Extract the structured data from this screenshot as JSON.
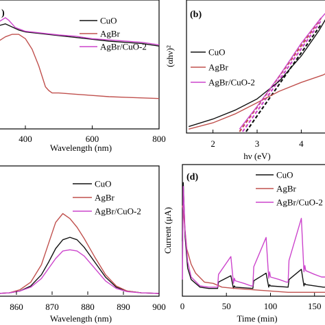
{
  "chart_data": [
    {
      "type": "line",
      "panel_label": ")",
      "xlabel": "Wavelength (nm)",
      "ylabel": "",
      "xlim": [
        320,
        800
      ],
      "ylim": [
        0,
        1
      ],
      "x_ticks": [
        "400",
        "600",
        "800"
      ],
      "y_ticks": [],
      "legend": "top-right",
      "series": [
        {
          "name": "CuO",
          "color": "#111111",
          "x": [
            320,
            340,
            360,
            380,
            400,
            450,
            500,
            550,
            600,
            650,
            700,
            750,
            800
          ],
          "y": [
            0.825,
            0.84,
            0.815,
            0.79,
            0.775,
            0.76,
            0.745,
            0.73,
            0.715,
            0.7,
            0.69,
            0.68,
            0.66
          ]
        },
        {
          "name": "AgBr",
          "color": "#c0504d",
          "x": [
            320,
            340,
            360,
            380,
            400,
            420,
            440,
            460,
            470,
            480,
            500,
            550,
            600,
            650,
            700,
            750,
            800
          ],
          "y": [
            0.7,
            0.735,
            0.755,
            0.755,
            0.72,
            0.635,
            0.5,
            0.33,
            0.3,
            0.28,
            0.28,
            0.27,
            0.26,
            0.25,
            0.245,
            0.24,
            0.235
          ]
        },
        {
          "name": "AgBr/CuO-2",
          "color": "#cc44cc",
          "x": [
            320,
            340,
            350,
            370,
            400,
            450,
            500,
            550,
            600,
            650,
            700,
            750,
            800
          ],
          "y": [
            0.855,
            0.89,
            0.87,
            0.81,
            0.78,
            0.765,
            0.75,
            0.74,
            0.72,
            0.71,
            0.7,
            0.69,
            0.67
          ]
        }
      ]
    },
    {
      "type": "line",
      "panel_label": "(b)",
      "xlabel": "hν (eV)",
      "ylabel": "(αhν)²",
      "xlim": [
        1.4,
        4.6
      ],
      "ylim": [
        0,
        1
      ],
      "x_ticks": [
        "2",
        "3",
        "4"
      ],
      "y_ticks": [],
      "legend": "center-left",
      "series": [
        {
          "name": "CuO",
          "color": "#111111",
          "x": [
            1.45,
            2.0,
            2.5,
            3.0,
            3.5,
            4.0,
            4.4,
            4.6
          ],
          "y": [
            0.04,
            0.1,
            0.17,
            0.26,
            0.4,
            0.6,
            0.8,
            0.92
          ]
        },
        {
          "name": "AgBr",
          "color": "#c0504d",
          "x": [
            1.45,
            2.0,
            2.5,
            3.0,
            3.5,
            4.0,
            4.5,
            4.6
          ],
          "y": [
            0.02,
            0.07,
            0.14,
            0.23,
            0.32,
            0.39,
            0.45,
            0.47
          ]
        },
        {
          "name": "AgBr/CuO-2",
          "color": "#cc44cc",
          "x": [
            2.6,
            3.0,
            3.5,
            4.0,
            4.4,
            4.6
          ],
          "y": [
            0.02,
            0.2,
            0.44,
            0.7,
            0.88,
            0.96
          ]
        }
      ],
      "fit_lines": [
        {
          "color": "#111111",
          "x": [
            2.75,
            4.45
          ],
          "y": [
            0.0,
            0.85
          ]
        },
        {
          "color": "#c0504d",
          "x": [
            2.6,
            4.45
          ],
          "y": [
            0.0,
            0.9
          ]
        },
        {
          "color": "#cc44cc",
          "x": [
            2.67,
            4.45
          ],
          "y": [
            0.0,
            0.88
          ]
        }
      ]
    },
    {
      "type": "line",
      "panel_label": "",
      "xlabel": "Wavelength (nm)",
      "ylabel": "",
      "xlim": [
        855,
        900
      ],
      "ylim": [
        0,
        1
      ],
      "x_ticks": [
        "860",
        "870",
        "880",
        "890",
        "900"
      ],
      "y_ticks": [],
      "legend": "top-right",
      "series": [
        {
          "name": "CuO",
          "color": "#111111",
          "x": [
            855,
            858,
            861,
            864,
            867,
            869,
            871,
            873,
            875,
            877,
            879,
            882,
            885,
            888,
            891,
            895,
            900
          ],
          "y": [
            0.0,
            0.005,
            0.02,
            0.06,
            0.15,
            0.25,
            0.36,
            0.43,
            0.45,
            0.43,
            0.37,
            0.25,
            0.13,
            0.05,
            0.02,
            0.005,
            0.0
          ]
        },
        {
          "name": "AgBr",
          "color": "#c0504d",
          "x": [
            855,
            858,
            861,
            864,
            867,
            869,
            871,
            873,
            875,
            877,
            879,
            882,
            885,
            888,
            891,
            895,
            900
          ],
          "y": [
            0.0,
            0.005,
            0.03,
            0.09,
            0.23,
            0.4,
            0.57,
            0.64,
            0.6,
            0.53,
            0.44,
            0.29,
            0.15,
            0.06,
            0.02,
            0.005,
            0.0
          ]
        },
        {
          "name": "AgBr/CuO-2",
          "color": "#cc44cc",
          "x": [
            855,
            858,
            861,
            864,
            867,
            869,
            871,
            873,
            875,
            877,
            879,
            882,
            885,
            888,
            891,
            895,
            900
          ],
          "y": [
            0.0,
            0.005,
            0.02,
            0.05,
            0.12,
            0.2,
            0.28,
            0.34,
            0.35,
            0.34,
            0.3,
            0.2,
            0.1,
            0.04,
            0.015,
            0.005,
            0.0
          ]
        }
      ]
    },
    {
      "type": "line",
      "panel_label": "(d)",
      "xlabel": "Time (min)",
      "ylabel": "Current  (μA)",
      "xlim": [
        0,
        165
      ],
      "ylim": [
        0,
        1
      ],
      "x_ticks": [
        "0",
        "50",
        "100",
        "150"
      ],
      "y_ticks": [],
      "legend": "top-right",
      "series": [
        {
          "name": "CuO",
          "color": "#111111",
          "x": [
            0,
            1,
            3,
            6,
            10,
            20,
            30,
            39,
            40,
            41,
            55,
            58,
            59,
            60,
            80,
            81,
            95,
            98,
            99,
            100,
            120,
            121,
            135,
            138,
            139,
            140,
            160,
            165
          ],
          "y": [
            0.42,
            0.88,
            0.46,
            0.21,
            0.12,
            0.06,
            0.05,
            0.05,
            0.05,
            0.1,
            0.15,
            0.05,
            0.07,
            0.06,
            0.05,
            0.11,
            0.17,
            0.06,
            0.08,
            0.07,
            0.06,
            0.12,
            0.2,
            0.07,
            0.09,
            0.08,
            0.06,
            0.06
          ]
        },
        {
          "name": "AgBr",
          "color": "#c0504d",
          "x": [
            0,
            1,
            5,
            10,
            15,
            25,
            35,
            45,
            60,
            80,
            100,
            120,
            140,
            160,
            165
          ],
          "y": [
            0.7,
            0.66,
            0.36,
            0.24,
            0.17,
            0.1,
            0.09,
            0.06,
            0.05,
            0.04,
            0.03,
            0.02,
            0.02,
            0.02,
            0.02
          ]
        },
        {
          "name": "AgBr/CuO-2",
          "color": "#cc44cc",
          "x": [
            0,
            1,
            3,
            6,
            10,
            20,
            30,
            39,
            40,
            41,
            55,
            58,
            59,
            60,
            70,
            78,
            79,
            80,
            81,
            95,
            98,
            99,
            100,
            110,
            118,
            119,
            120,
            121,
            135,
            138,
            139,
            140,
            150,
            158,
            160,
            165
          ],
          "y": [
            0.12,
            0.85,
            0.5,
            0.26,
            0.14,
            0.07,
            0.06,
            0.06,
            0.06,
            0.16,
            0.3,
            0.09,
            0.13,
            0.11,
            0.09,
            0.07,
            0.07,
            0.07,
            0.22,
            0.45,
            0.13,
            0.18,
            0.14,
            0.12,
            0.1,
            0.1,
            0.1,
            0.27,
            0.6,
            0.18,
            0.23,
            0.19,
            0.16,
            0.14,
            0.14,
            0.14
          ]
        }
      ]
    }
  ]
}
